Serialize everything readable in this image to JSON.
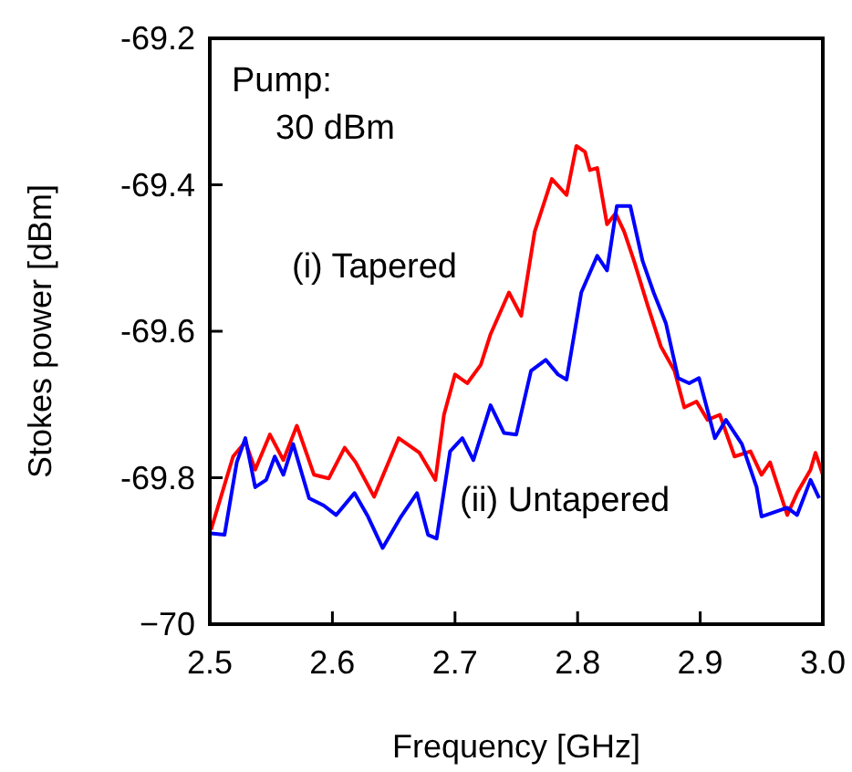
{
  "chart_data": {
    "type": "line",
    "xlabel": "Frequency [GHz]",
    "ylabel": "Stokes power [dBm]",
    "annotations": [
      "Pump:",
      "30 dBm"
    ],
    "xlim": [
      2.5,
      3.0
    ],
    "xticks": [
      {
        "value": 2.5,
        "label": "2.5"
      },
      {
        "value": 2.6,
        "label": "2.6"
      },
      {
        "value": 2.7,
        "label": "2.7"
      },
      {
        "value": 2.8,
        "label": "2.8"
      },
      {
        "value": 2.9,
        "label": "2.9"
      },
      {
        "value": 3.0,
        "label": "3.0"
      }
    ],
    "ylim": [
      -70,
      -69.2
    ],
    "yticks": [
      {
        "value": -70,
        "label": "−70"
      },
      -69.8,
      -69.6,
      -69.4,
      -69.2
    ],
    "grid": false,
    "legend": false,
    "marker": "none",
    "line_style": "solid",
    "series": [
      {
        "name": "(i) Tapered",
        "color": "#ff0000",
        "x": [
          2.501,
          2.519,
          2.529,
          2.537,
          2.549,
          2.56,
          2.571,
          2.585,
          2.597,
          2.61,
          2.619,
          2.634,
          2.654,
          2.671,
          2.684,
          2.691,
          2.7,
          2.71,
          2.721,
          2.729,
          2.744,
          2.754,
          2.765,
          2.779,
          2.791,
          2.799,
          2.806,
          2.81,
          2.816,
          2.824,
          2.831,
          2.838,
          2.846,
          2.857,
          2.868,
          2.879,
          2.887,
          2.897,
          2.906,
          2.916,
          2.928,
          2.941,
          2.95,
          2.957,
          2.971,
          2.979,
          2.99,
          2.994,
          3.0
        ],
        "values": [
          -69.871,
          -69.771,
          -69.751,
          -69.789,
          -69.741,
          -69.776,
          -69.729,
          -69.796,
          -69.801,
          -69.759,
          -69.779,
          -69.826,
          -69.746,
          -69.766,
          -69.803,
          -69.714,
          -69.659,
          -69.671,
          -69.646,
          -69.604,
          -69.547,
          -69.579,
          -69.464,
          -69.392,
          -69.414,
          -69.347,
          -69.355,
          -69.38,
          -69.377,
          -69.454,
          -69.439,
          -69.464,
          -69.504,
          -69.564,
          -69.621,
          -69.654,
          -69.704,
          -69.696,
          -69.721,
          -69.714,
          -69.771,
          -69.764,
          -69.796,
          -69.779,
          -69.851,
          -69.821,
          -69.789,
          -69.766,
          -69.796
        ]
      },
      {
        "name": "(ii) Untapered",
        "color": "#0000ff",
        "x": [
          2.501,
          2.512,
          2.522,
          2.529,
          2.537,
          2.546,
          2.553,
          2.56,
          2.568,
          2.581,
          2.593,
          2.603,
          2.618,
          2.629,
          2.641,
          2.656,
          2.669,
          2.678,
          2.685,
          2.696,
          2.706,
          2.715,
          2.729,
          2.74,
          2.75,
          2.762,
          2.774,
          2.784,
          2.791,
          2.803,
          2.816,
          2.824,
          2.832,
          2.843,
          2.853,
          2.862,
          2.872,
          2.882,
          2.891,
          2.899,
          2.912,
          2.921,
          2.934,
          2.946,
          2.95,
          2.971,
          2.979,
          2.99,
          2.997
        ],
        "values": [
          -69.876,
          -69.878,
          -69.779,
          -69.746,
          -69.813,
          -69.803,
          -69.771,
          -69.796,
          -69.754,
          -69.828,
          -69.838,
          -69.851,
          -69.821,
          -69.853,
          -69.896,
          -69.853,
          -69.821,
          -69.878,
          -69.883,
          -69.764,
          -69.746,
          -69.776,
          -69.701,
          -69.739,
          -69.741,
          -69.654,
          -69.639,
          -69.659,
          -69.666,
          -69.547,
          -69.497,
          -69.517,
          -69.429,
          -69.429,
          -69.504,
          -69.547,
          -69.589,
          -69.664,
          -69.671,
          -69.664,
          -69.746,
          -69.721,
          -69.754,
          -69.813,
          -69.853,
          -69.841,
          -69.851,
          -69.803,
          -69.828
        ]
      }
    ]
  }
}
